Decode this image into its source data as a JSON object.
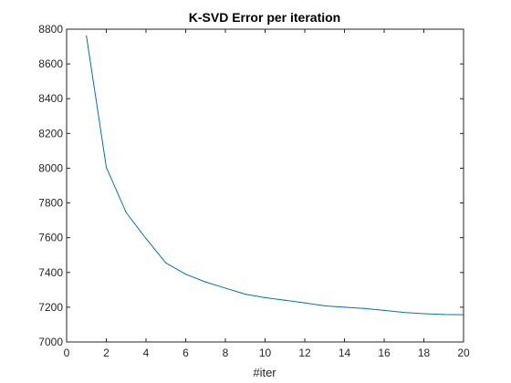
{
  "chart_data": {
    "type": "line",
    "title": "K-SVD Error per iteration",
    "xlabel": "#iter",
    "ylabel": "",
    "xlim": [
      0,
      20
    ],
    "ylim": [
      7000,
      8800
    ],
    "xticks": [
      0,
      2,
      4,
      6,
      8,
      10,
      12,
      14,
      16,
      18,
      20
    ],
    "yticks": [
      7000,
      7200,
      7400,
      7600,
      7800,
      8000,
      8200,
      8400,
      8600,
      8800
    ],
    "grid": false,
    "series": [
      {
        "x": [
          1,
          2,
          3,
          4,
          5,
          6,
          7,
          8,
          9,
          10,
          11,
          12,
          13,
          14,
          15,
          16,
          17,
          18,
          19,
          20
        ],
        "values": [
          8760,
          8005,
          7745,
          7595,
          7455,
          7390,
          7345,
          7310,
          7275,
          7255,
          7240,
          7225,
          7208,
          7200,
          7193,
          7182,
          7170,
          7163,
          7158,
          7157
        ],
        "color": "#0072BD"
      }
    ]
  }
}
